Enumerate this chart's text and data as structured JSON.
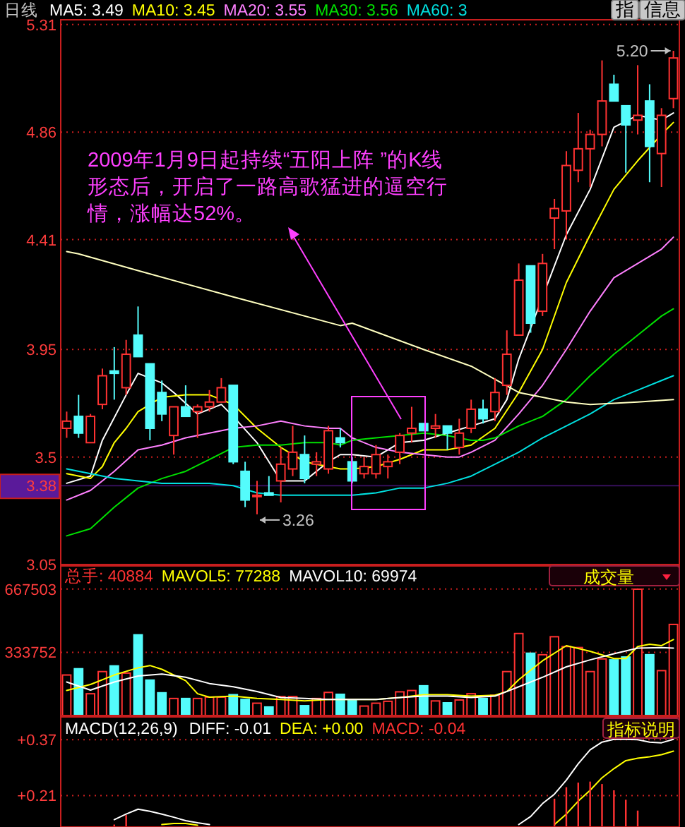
{
  "chart_data": [
    {
      "type": "candlestick",
      "title": "日线",
      "legend": "top",
      "grid": "y",
      "categories": [
        null,
        null,
        null,
        null,
        null,
        null,
        null,
        null,
        null,
        null,
        null,
        null,
        null,
        null,
        null,
        null,
        null,
        null,
        null,
        null,
        null,
        null,
        null,
        null,
        null,
        null,
        null,
        null,
        null,
        null,
        null,
        null,
        null,
        null,
        null,
        null,
        null,
        null,
        null,
        null,
        null,
        null,
        null,
        null,
        null,
        null,
        null,
        null,
        null,
        null,
        null,
        null
      ],
      "ohlc": [
        [
          3.62,
          3.69,
          3.58,
          3.65
        ],
        [
          3.67,
          3.76,
          3.58,
          3.6
        ],
        [
          3.56,
          3.68,
          3.56,
          3.67
        ],
        [
          3.72,
          3.87,
          3.7,
          3.84
        ],
        [
          3.86,
          3.96,
          3.74,
          3.85
        ],
        [
          3.79,
          3.99,
          3.76,
          3.93
        ],
        [
          4.01,
          4.13,
          3.92,
          3.92
        ],
        [
          3.89,
          3.89,
          3.57,
          3.62
        ],
        [
          3.77,
          3.82,
          3.65,
          3.68
        ],
        [
          3.59,
          3.71,
          3.51,
          3.71
        ],
        [
          3.71,
          3.8,
          3.67,
          3.67
        ],
        [
          3.69,
          3.72,
          3.58,
          3.71
        ],
        [
          3.71,
          3.78,
          3.69,
          3.73
        ],
        [
          3.73,
          3.83,
          3.73,
          3.79
        ],
        [
          3.8,
          3.8,
          3.47,
          3.48
        ],
        [
          3.44,
          3.48,
          3.29,
          3.32
        ],
        [
          3.34,
          3.4,
          3.26,
          3.34
        ],
        [
          3.35,
          3.42,
          3.34,
          3.34
        ],
        [
          3.4,
          3.54,
          3.31,
          3.47
        ],
        [
          3.45,
          3.63,
          3.42,
          3.52
        ],
        [
          3.51,
          3.59,
          3.39,
          3.41
        ],
        [
          3.47,
          3.52,
          3.42,
          3.48
        ],
        [
          3.45,
          3.63,
          3.43,
          3.61
        ],
        [
          3.58,
          3.62,
          3.54,
          3.56
        ],
        [
          3.48,
          3.5,
          3.39,
          3.4
        ],
        [
          3.43,
          3.5,
          3.41,
          3.46
        ],
        [
          3.43,
          3.55,
          3.41,
          3.51
        ],
        [
          3.46,
          3.51,
          3.41,
          3.48
        ],
        [
          3.52,
          3.6,
          3.47,
          3.59
        ],
        [
          3.6,
          3.71,
          3.56,
          3.62
        ],
        [
          3.64,
          3.64,
          3.61,
          3.61
        ],
        [
          3.62,
          3.68,
          3.58,
          3.63
        ],
        [
          3.63,
          3.63,
          3.53,
          3.6
        ],
        [
          3.54,
          3.66,
          3.51,
          3.6
        ],
        [
          3.62,
          3.74,
          3.6,
          3.7
        ],
        [
          3.7,
          3.74,
          3.64,
          3.66
        ],
        [
          3.69,
          3.83,
          3.65,
          3.77
        ],
        [
          3.8,
          4.03,
          3.76,
          3.93
        ],
        [
          4.01,
          4.31,
          4.01,
          4.24
        ],
        [
          4.3,
          4.3,
          4.02,
          4.06
        ],
        [
          4.11,
          4.35,
          4.09,
          4.31
        ],
        [
          4.5,
          4.58,
          4.37,
          4.54
        ],
        [
          4.53,
          4.78,
          4.41,
          4.72
        ],
        [
          4.7,
          4.94,
          4.65,
          4.79
        ],
        [
          4.79,
          4.87,
          4.63,
          4.85
        ],
        [
          4.85,
          5.16,
          4.8,
          4.99
        ],
        [
          5.06,
          5.1,
          4.99,
          4.99
        ],
        [
          4.97,
          4.97,
          4.69,
          4.89
        ],
        [
          4.91,
          5.14,
          4.85,
          4.93
        ],
        [
          4.99,
          5.06,
          4.65,
          4.8
        ],
        [
          4.77,
          4.96,
          4.63,
          4.93
        ],
        [
          5.0,
          5.2,
          4.96,
          5.17
        ]
      ],
      "series": [
        {
          "name": "MA5: 3.49",
          "type": "line",
          "color": "#ffffff",
          "values": [
            3.39,
            null,
            3.42,
            3.57,
            null,
            3.76,
            3.85,
            null,
            3.81,
            3.77,
            null,
            3.68,
            null,
            3.72,
            3.67,
            null,
            3.56,
            null,
            3.4,
            null,
            3.4,
            null,
            3.48,
            3.51,
            3.51,
            null,
            3.5,
            null,
            3.56,
            null,
            3.57,
            null,
            3.6,
            null,
            3.63,
            null,
            3.66,
            3.74,
            3.91,
            null,
            null,
            null,
            4.43,
            null,
            4.62,
            null,
            4.88,
            null,
            4.93,
            null,
            4.91,
            4.94
          ]
        },
        {
          "name": "MA10: 3.45",
          "type": "line",
          "color": "#ffff00",
          "values": [
            3.43,
            null,
            3.41,
            3.46,
            3.56,
            3.62,
            3.69,
            null,
            3.75,
            null,
            3.76,
            null,
            3.76,
            null,
            3.72,
            null,
            3.62,
            null,
            3.54,
            null,
            3.48,
            null,
            3.46,
            3.45,
            3.45,
            null,
            3.46,
            null,
            3.49,
            null,
            3.53,
            null,
            3.53,
            null,
            3.55,
            null,
            3.62,
            null,
            3.77,
            null,
            3.95,
            null,
            4.23,
            null,
            4.43,
            null,
            4.62,
            null,
            4.74,
            null,
            4.85,
            4.9
          ]
        },
        {
          "name": "MA20: 3.55",
          "type": "line",
          "color": "#ff80ff",
          "values": [
            3.32,
            null,
            3.36,
            null,
            3.44,
            null,
            3.53,
            null,
            3.55,
            null,
            3.58,
            null,
            3.6,
            null,
            3.62,
            null,
            3.63,
            null,
            3.65,
            null,
            3.63,
            null,
            3.62,
            3.62,
            3.58,
            null,
            3.54,
            null,
            3.52,
            null,
            3.51,
            null,
            3.5,
            3.5,
            3.52,
            null,
            3.57,
            null,
            3.68,
            null,
            3.8,
            null,
            3.95,
            null,
            4.11,
            null,
            4.25,
            null,
            4.31,
            null,
            4.37,
            4.42
          ]
        },
        {
          "name": "MA30: 3.56",
          "type": "line",
          "color": "#00e000",
          "values": [
            3.17,
            null,
            3.2,
            null,
            3.29,
            null,
            3.37,
            null,
            3.41,
            null,
            3.44,
            null,
            3.49,
            null,
            3.54,
            null,
            3.55,
            null,
            3.55,
            null,
            3.56,
            null,
            3.56,
            3.55,
            3.57,
            null,
            3.58,
            null,
            3.59,
            null,
            3.6,
            null,
            3.59,
            null,
            3.57,
            3.57,
            3.58,
            null,
            3.63,
            null,
            3.67,
            null,
            3.74,
            null,
            3.84,
            null,
            3.93,
            null,
            4.01,
            null,
            4.09,
            4.12
          ]
        },
        {
          "name": "MA60: 3",
          "type": "line",
          "color": "#00e0e0",
          "values": [
            3.45,
            null,
            3.43,
            null,
            3.41,
            null,
            3.4,
            null,
            3.39,
            null,
            3.39,
            null,
            3.39,
            null,
            3.38,
            null,
            3.35,
            null,
            3.34,
            null,
            3.34,
            null,
            3.34,
            3.34,
            3.34,
            null,
            3.35,
            null,
            3.37,
            null,
            3.37,
            null,
            3.39,
            null,
            3.42,
            null,
            3.47,
            null,
            3.52,
            null,
            3.58,
            null,
            3.63,
            null,
            3.68,
            null,
            3.74,
            null,
            3.78,
            null,
            3.82,
            3.84
          ]
        },
        {
          "type": "line",
          "color": "#ffffc0",
          "values": [
            4.36,
            4.35,
            null,
            null,
            null,
            null,
            4.28,
            null,
            null,
            null,
            null,
            null,
            null,
            null,
            4.17,
            null,
            null,
            null,
            null,
            null,
            null,
            null,
            null,
            4.05,
            4.06,
            null,
            null,
            null,
            null,
            null,
            3.95,
            null,
            null,
            null,
            3.88,
            null,
            null,
            null,
            3.77,
            null,
            null,
            null,
            3.73,
            null,
            3.72,
            null,
            null,
            null,
            3.73,
            null,
            null,
            3.74
          ]
        }
      ],
      "ylim": [
        3.05,
        5.33
      ],
      "yticks": [
        3.05,
        3.5,
        3.95,
        4.41,
        4.86,
        5.31
      ],
      "ref_lines": [
        {
          "axis": "y",
          "value": 3.38,
          "label": "3.38",
          "color": "#5a1a9a"
        }
      ],
      "annotations": [
        "2009年1月9日起持续“五阳上阵 ”的K线形态后，开启了一路高歌猛进的逼空行情，涨幅达52%。",
        "5.20",
        "3.26",
        "指",
        "信息"
      ]
    },
    {
      "type": "bar",
      "legend": "top",
      "grid": "y",
      "categories": [
        null,
        null,
        null,
        null,
        null,
        null,
        null,
        null,
        null,
        null,
        null,
        null,
        null,
        null,
        null,
        null,
        null,
        null,
        null,
        null,
        null,
        null,
        null,
        null,
        null,
        null,
        null,
        null,
        null,
        null,
        null,
        null,
        null,
        null,
        null,
        null,
        null,
        null,
        null,
        null,
        null,
        null,
        null,
        null,
        null,
        null,
        null,
        null,
        null,
        null,
        null,
        null
      ],
      "series": [
        {
          "name": "总手: 40884",
          "color": "#ff3232",
          "values": [
            214000,
            247000,
            115000,
            232000,
            262000,
            224000,
            426000,
            187000,
            120000,
            90000,
            90000,
            90000,
            97000,
            97000,
            110000,
            85000,
            65000,
            45000,
            100000,
            100000,
            52000,
            90000,
            122000,
            112000,
            82000,
            50000,
            65000,
            75000,
            125000,
            132000,
            157000,
            77000,
            67000,
            82000,
            115000,
            90000,
            107000,
            232000,
            433000,
            329000,
            321000,
            416000,
            364000,
            359000,
            232000,
            299000,
            294000,
            309000,
            667000,
            321000,
            237000,
            481000
          ],
          "colors": [
            "#ff3232",
            "#54fcfc",
            "#ff3232",
            "#ff3232",
            "#54fcfc",
            "#ff3232",
            "#54fcfc",
            "#54fcfc",
            "#54fcfc",
            "#ff3232",
            "#54fcfc",
            "#ff3232",
            "#ff3232",
            "#ff3232",
            "#54fcfc",
            "#54fcfc",
            "#ff3232",
            "#54fcfc",
            "#ff3232",
            "#ff3232",
            "#54fcfc",
            "#ff3232",
            "#ff3232",
            "#54fcfc",
            "#54fcfc",
            "#ff3232",
            "#ff3232",
            "#ff3232",
            "#ff3232",
            "#ff3232",
            "#54fcfc",
            "#ff3232",
            "#54fcfc",
            "#ff3232",
            "#ff3232",
            "#54fcfc",
            "#ff3232",
            "#ff3232",
            "#ff3232",
            "#54fcfc",
            "#ff3232",
            "#ff3232",
            "#ff3232",
            "#ff3232",
            "#ff3232",
            "#ff3232",
            "#54fcfc",
            "#54fcfc",
            "#ff3232",
            "#54fcfc",
            "#ff3232",
            "#ff3232"
          ]
        },
        {
          "name": "MAVOL5: 77288",
          "type": "line",
          "color": "#ffff00",
          "values": [
            132000,
            null,
            164000,
            null,
            214000,
            null,
            252000,
            264000,
            244000,
            null,
            184000,
            115000,
            97000,
            null,
            102000,
            null,
            90000,
            null,
            85000,
            null,
            77000,
            null,
            85000,
            null,
            85000,
            null,
            85000,
            null,
            95000,
            null,
            110000,
            null,
            110000,
            null,
            102000,
            null,
            107000,
            127000,
            189000,
            null,
            289000,
            null,
            369000,
            null,
            339000,
            null,
            301000,
            301000,
            364000,
            376000,
            369000,
            401000
          ]
        },
        {
          "name": "MAVOL10: 69974",
          "type": "line",
          "color": "#ffffff",
          "values": [
            177000,
            null,
            134000,
            null,
            177000,
            null,
            209000,
            null,
            219000,
            null,
            202000,
            null,
            169000,
            null,
            152000,
            null,
            127000,
            null,
            95000,
            null,
            90000,
            null,
            85000,
            null,
            85000,
            null,
            85000,
            null,
            95000,
            null,
            102000,
            null,
            102000,
            null,
            95000,
            null,
            102000,
            null,
            152000,
            null,
            202000,
            null,
            257000,
            null,
            294000,
            null,
            326000,
            null,
            356000,
            null,
            359000,
            356000
          ]
        }
      ],
      "ylim": [
        0,
        790000
      ],
      "yticks": [
        333752,
        667503
      ],
      "annotations": [
        "成交量"
      ]
    },
    {
      "type": "line",
      "title": "MACD(12,26,9)",
      "legend": "top",
      "grid": "y",
      "categories": [
        null,
        null,
        null,
        null,
        null,
        null,
        null,
        null,
        null,
        null,
        null,
        null,
        null,
        null,
        null,
        null,
        null,
        null,
        null,
        null,
        null,
        null,
        null,
        null,
        null,
        null,
        null,
        null,
        null,
        null,
        null,
        null,
        null,
        null,
        null,
        null,
        null,
        null,
        null,
        null,
        null,
        null,
        null,
        null,
        null,
        null,
        null,
        null,
        null,
        null,
        null,
        null
      ],
      "series": [
        {
          "name": "DIFF: -0.01",
          "color": "#ffffff",
          "values": [
            null,
            null,
            null,
            null,
            0.141,
            0.157,
            0.171,
            0.165,
            0.157,
            0.148,
            0.138,
            0.132,
            0.127,
            null,
            null,
            null,
            null,
            null,
            null,
            null,
            null,
            null,
            null,
            null,
            null,
            null,
            null,
            null,
            null,
            null,
            null,
            null,
            null,
            null,
            null,
            null,
            null,
            null,
            0.127,
            0.15,
            0.187,
            0.214,
            0.254,
            0.301,
            0.341,
            0.363,
            0.371,
            0.371,
            0.37,
            0.363,
            0.361,
            0.371
          ]
        },
        {
          "name": "DEA: +0.00",
          "color": "#ffff00",
          "values": [
            null,
            null,
            null,
            null,
            null,
            null,
            null,
            null,
            0.127,
            0.13,
            0.13,
            0.125,
            null,
            null,
            null,
            null,
            null,
            null,
            null,
            null,
            null,
            null,
            null,
            null,
            null,
            null,
            null,
            null,
            null,
            null,
            null,
            null,
            null,
            null,
            null,
            null,
            null,
            null,
            null,
            null,
            null,
            0.127,
            0.157,
            0.194,
            0.225,
            0.261,
            0.287,
            0.31,
            0.317,
            0.321,
            0.327,
            0.337
          ]
        },
        {
          "name": "MACD: -0.04",
          "type": "bar",
          "color": "#ff3232",
          "values": [
            null,
            null,
            null,
            null,
            0.127,
            0.154,
            null,
            null,
            null,
            null,
            null,
            null,
            null,
            null,
            null,
            null,
            null,
            null,
            null,
            null,
            null,
            null,
            null,
            null,
            null,
            null,
            null,
            null,
            null,
            null,
            null,
            null,
            null,
            null,
            null,
            null,
            null,
            null,
            null,
            null,
            null,
            0.201,
            0.234,
            0.247,
            0.25,
            0.243,
            0.225,
            0.198,
            0.167,
            null,
            null,
            null
          ]
        }
      ],
      "ylim": [
        0.12,
        0.435
      ],
      "yticks": [
        {
          "value": 0.37,
          "label": "+0.37"
        },
        {
          "value": 0.21,
          "label": "+0.21"
        }
      ],
      "annotations": [
        "指标说明"
      ]
    }
  ]
}
